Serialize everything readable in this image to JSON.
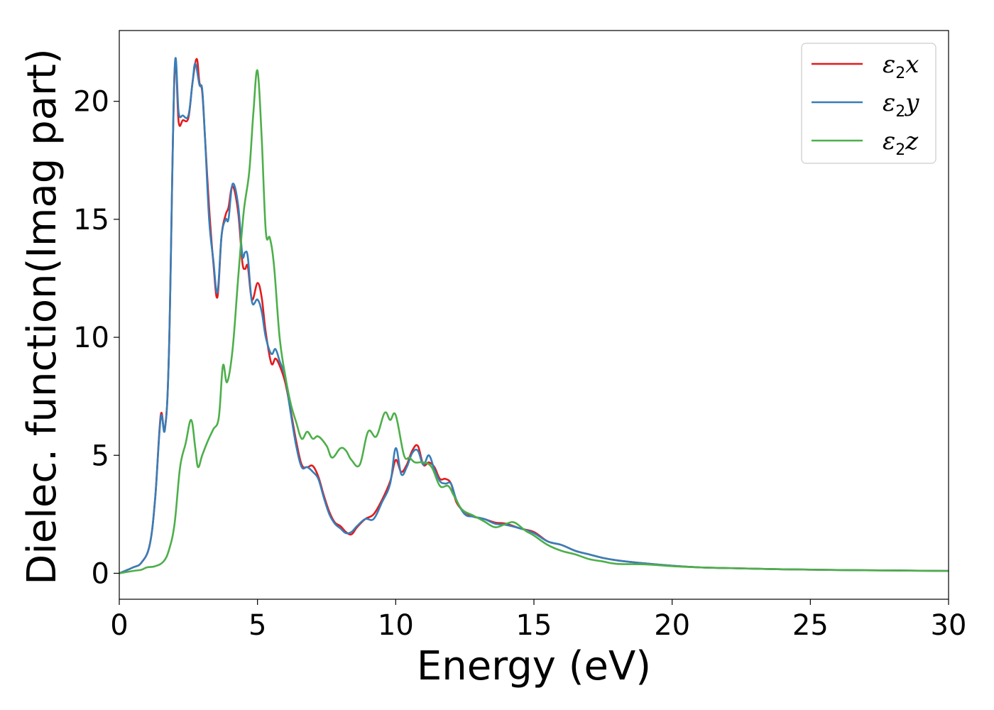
{
  "chart_data": {
    "type": "line",
    "xlabel": "Energy (eV)",
    "ylabel": "Dielec. function(Imag part)",
    "xlim": [
      0,
      30
    ],
    "ylim": [
      -1.1,
      23
    ],
    "x_ticks": [
      0,
      5,
      10,
      15,
      20,
      25,
      30
    ],
    "y_ticks": [
      0,
      5,
      10,
      15,
      20
    ],
    "x_tick_labels": [
      "0",
      "5",
      "10",
      "15",
      "20",
      "25",
      "30"
    ],
    "y_tick_labels": [
      "0",
      "5",
      "10",
      "15",
      "20"
    ],
    "grid": false,
    "legend_position": "top-right",
    "series": [
      {
        "name": "ε2x",
        "legend": {
          "symbol": "ε",
          "sub": "2",
          "suffix": "x"
        },
        "color": "#e41a1c",
        "points": [
          [
            0,
            0
          ],
          [
            0.5,
            0.25
          ],
          [
            0.8,
            0.45
          ],
          [
            1.1,
            1.2
          ],
          [
            1.3,
            3.2
          ],
          [
            1.5,
            6.7
          ],
          [
            1.65,
            6.1
          ],
          [
            1.8,
            9.5
          ],
          [
            2.0,
            21.2
          ],
          [
            2.15,
            19.1
          ],
          [
            2.3,
            19.2
          ],
          [
            2.5,
            19.3
          ],
          [
            2.65,
            20.8
          ],
          [
            2.8,
            21.8
          ],
          [
            2.9,
            20.8
          ],
          [
            3.0,
            20.4
          ],
          [
            3.1,
            18.5
          ],
          [
            3.25,
            15.5
          ],
          [
            3.4,
            13.2
          ],
          [
            3.55,
            11.7
          ],
          [
            3.7,
            14.3
          ],
          [
            3.85,
            15.2
          ],
          [
            3.95,
            15.5
          ],
          [
            4.1,
            16.4
          ],
          [
            4.3,
            15.3
          ],
          [
            4.45,
            13.2
          ],
          [
            4.55,
            12.9
          ],
          [
            4.65,
            13.0
          ],
          [
            4.8,
            11.6
          ],
          [
            5.0,
            12.3
          ],
          [
            5.15,
            11.7
          ],
          [
            5.3,
            10.2
          ],
          [
            5.5,
            8.9
          ],
          [
            5.65,
            9.1
          ],
          [
            5.8,
            8.8
          ],
          [
            6.0,
            8.1
          ],
          [
            6.2,
            6.9
          ],
          [
            6.4,
            5.6
          ],
          [
            6.6,
            4.6
          ],
          [
            6.8,
            4.5
          ],
          [
            7.0,
            4.55
          ],
          [
            7.2,
            4.1
          ],
          [
            7.4,
            3.3
          ],
          [
            7.6,
            2.6
          ],
          [
            7.8,
            2.15
          ],
          [
            8.0,
            2.0
          ],
          [
            8.2,
            1.75
          ],
          [
            8.4,
            1.65
          ],
          [
            8.6,
            1.95
          ],
          [
            8.9,
            2.3
          ],
          [
            9.2,
            2.5
          ],
          [
            9.5,
            3.1
          ],
          [
            9.8,
            3.9
          ],
          [
            10.0,
            4.8
          ],
          [
            10.2,
            4.3
          ],
          [
            10.4,
            4.6
          ],
          [
            10.6,
            5.2
          ],
          [
            10.8,
            5.4
          ],
          [
            11.0,
            4.6
          ],
          [
            11.2,
            4.7
          ],
          [
            11.4,
            4.5
          ],
          [
            11.6,
            4.0
          ],
          [
            11.8,
            4.0
          ],
          [
            12.0,
            3.8
          ],
          [
            12.2,
            3.0
          ],
          [
            12.5,
            2.6
          ],
          [
            12.8,
            2.4
          ],
          [
            13.2,
            2.3
          ],
          [
            13.6,
            2.15
          ],
          [
            14.0,
            2.1
          ],
          [
            14.5,
            1.9
          ],
          [
            15.0,
            1.75
          ],
          [
            15.5,
            1.35
          ],
          [
            16.0,
            1.2
          ],
          [
            16.5,
            0.95
          ],
          [
            17.0,
            0.8
          ],
          [
            17.5,
            0.65
          ],
          [
            18.0,
            0.55
          ],
          [
            19.0,
            0.42
          ],
          [
            20.0,
            0.32
          ],
          [
            21.0,
            0.25
          ],
          [
            22.0,
            0.22
          ],
          [
            24.0,
            0.17
          ],
          [
            26.0,
            0.14
          ],
          [
            28.0,
            0.12
          ],
          [
            30.0,
            0.1
          ]
        ]
      },
      {
        "name": "ε2y",
        "legend": {
          "symbol": "ε",
          "sub": "2",
          "suffix": "y"
        },
        "color": "#377eb8",
        "points": [
          [
            0,
            0
          ],
          [
            0.5,
            0.25
          ],
          [
            0.8,
            0.45
          ],
          [
            1.1,
            1.2
          ],
          [
            1.3,
            3.2
          ],
          [
            1.5,
            6.6
          ],
          [
            1.65,
            6.1
          ],
          [
            1.8,
            9.5
          ],
          [
            2.0,
            21.3
          ],
          [
            2.15,
            19.5
          ],
          [
            2.3,
            19.4
          ],
          [
            2.5,
            19.4
          ],
          [
            2.65,
            20.8
          ],
          [
            2.75,
            21.6
          ],
          [
            2.9,
            20.7
          ],
          [
            3.0,
            20.5
          ],
          [
            3.1,
            18.5
          ],
          [
            3.25,
            15.0
          ],
          [
            3.4,
            13.3
          ],
          [
            3.55,
            11.9
          ],
          [
            3.7,
            14.3
          ],
          [
            3.85,
            15.0
          ],
          [
            3.95,
            15.0
          ],
          [
            4.1,
            16.5
          ],
          [
            4.3,
            15.6
          ],
          [
            4.45,
            13.5
          ],
          [
            4.55,
            13.6
          ],
          [
            4.65,
            13.4
          ],
          [
            4.8,
            11.5
          ],
          [
            5.0,
            11.6
          ],
          [
            5.15,
            11.1
          ],
          [
            5.3,
            10.0
          ],
          [
            5.5,
            9.3
          ],
          [
            5.65,
            9.5
          ],
          [
            5.8,
            9.0
          ],
          [
            6.0,
            8.3
          ],
          [
            6.2,
            6.8
          ],
          [
            6.4,
            5.4
          ],
          [
            6.6,
            4.5
          ],
          [
            6.8,
            4.5
          ],
          [
            7.0,
            4.3
          ],
          [
            7.2,
            4.0
          ],
          [
            7.4,
            3.2
          ],
          [
            7.6,
            2.5
          ],
          [
            7.8,
            2.1
          ],
          [
            8.0,
            1.9
          ],
          [
            8.2,
            1.7
          ],
          [
            8.4,
            1.75
          ],
          [
            8.6,
            2.0
          ],
          [
            8.9,
            2.3
          ],
          [
            9.2,
            2.3
          ],
          [
            9.5,
            3.0
          ],
          [
            9.8,
            3.8
          ],
          [
            10.0,
            5.3
          ],
          [
            10.2,
            4.2
          ],
          [
            10.4,
            4.5
          ],
          [
            10.6,
            5.1
          ],
          [
            10.8,
            5.2
          ],
          [
            11.0,
            4.6
          ],
          [
            11.2,
            5.0
          ],
          [
            11.4,
            4.4
          ],
          [
            11.6,
            3.9
          ],
          [
            11.8,
            3.8
          ],
          [
            12.0,
            3.8
          ],
          [
            12.2,
            3.1
          ],
          [
            12.5,
            2.5
          ],
          [
            12.8,
            2.4
          ],
          [
            13.2,
            2.3
          ],
          [
            13.6,
            2.1
          ],
          [
            14.0,
            2.05
          ],
          [
            14.5,
            1.9
          ],
          [
            15.0,
            1.7
          ],
          [
            15.5,
            1.35
          ],
          [
            16.0,
            1.2
          ],
          [
            16.5,
            0.95
          ],
          [
            17.0,
            0.8
          ],
          [
            17.5,
            0.65
          ],
          [
            18.0,
            0.55
          ],
          [
            19.0,
            0.42
          ],
          [
            20.0,
            0.32
          ],
          [
            21.0,
            0.25
          ],
          [
            22.0,
            0.22
          ],
          [
            24.0,
            0.17
          ],
          [
            26.0,
            0.14
          ],
          [
            28.0,
            0.12
          ],
          [
            30.0,
            0.1
          ]
        ]
      },
      {
        "name": "ε2z",
        "legend": {
          "symbol": "ε",
          "sub": "2",
          "suffix": "z"
        },
        "color": "#4daf4a",
        "points": [
          [
            0,
            0
          ],
          [
            0.5,
            0.1
          ],
          [
            0.8,
            0.15
          ],
          [
            1.0,
            0.25
          ],
          [
            1.3,
            0.3
          ],
          [
            1.6,
            0.5
          ],
          [
            1.8,
            1.0
          ],
          [
            2.0,
            2.1
          ],
          [
            2.2,
            4.5
          ],
          [
            2.4,
            5.5
          ],
          [
            2.6,
            6.5
          ],
          [
            2.75,
            5.3
          ],
          [
            2.85,
            4.5
          ],
          [
            3.0,
            5.0
          ],
          [
            3.2,
            5.6
          ],
          [
            3.4,
            6.1
          ],
          [
            3.6,
            6.6
          ],
          [
            3.75,
            8.8
          ],
          [
            3.9,
            8.1
          ],
          [
            4.1,
            9.5
          ],
          [
            4.3,
            12.5
          ],
          [
            4.5,
            15.3
          ],
          [
            4.7,
            17.0
          ],
          [
            4.85,
            19.5
          ],
          [
            5.0,
            21.3
          ],
          [
            5.15,
            18.5
          ],
          [
            5.3,
            14.5
          ],
          [
            5.45,
            14.2
          ],
          [
            5.6,
            13.0
          ],
          [
            5.8,
            10.0
          ],
          [
            6.0,
            8.4
          ],
          [
            6.2,
            7.2
          ],
          [
            6.4,
            6.4
          ],
          [
            6.6,
            5.7
          ],
          [
            6.8,
            6.0
          ],
          [
            7.0,
            5.7
          ],
          [
            7.2,
            5.8
          ],
          [
            7.5,
            5.4
          ],
          [
            7.7,
            4.9
          ],
          [
            8.0,
            5.3
          ],
          [
            8.2,
            5.2
          ],
          [
            8.4,
            4.8
          ],
          [
            8.7,
            4.6
          ],
          [
            9.0,
            6.0
          ],
          [
            9.3,
            5.8
          ],
          [
            9.6,
            6.8
          ],
          [
            9.8,
            6.5
          ],
          [
            10.0,
            6.7
          ],
          [
            10.3,
            5.0
          ],
          [
            10.5,
            4.9
          ],
          [
            10.7,
            4.7
          ],
          [
            11.0,
            4.7
          ],
          [
            11.3,
            4.5
          ],
          [
            11.6,
            3.7
          ],
          [
            11.9,
            3.7
          ],
          [
            12.1,
            3.3
          ],
          [
            12.4,
            2.7
          ],
          [
            12.8,
            2.45
          ],
          [
            13.2,
            2.2
          ],
          [
            13.6,
            1.95
          ],
          [
            14.0,
            2.1
          ],
          [
            14.3,
            2.15
          ],
          [
            14.7,
            1.8
          ],
          [
            15.0,
            1.6
          ],
          [
            15.5,
            1.2
          ],
          [
            16.0,
            0.95
          ],
          [
            16.5,
            0.8
          ],
          [
            17.0,
            0.6
          ],
          [
            17.5,
            0.5
          ],
          [
            18.0,
            0.4
          ],
          [
            19.0,
            0.38
          ],
          [
            20.0,
            0.3
          ],
          [
            21.0,
            0.25
          ],
          [
            22.0,
            0.22
          ],
          [
            24.0,
            0.17
          ],
          [
            26.0,
            0.14
          ],
          [
            28.0,
            0.12
          ],
          [
            30.0,
            0.1
          ]
        ]
      }
    ]
  }
}
